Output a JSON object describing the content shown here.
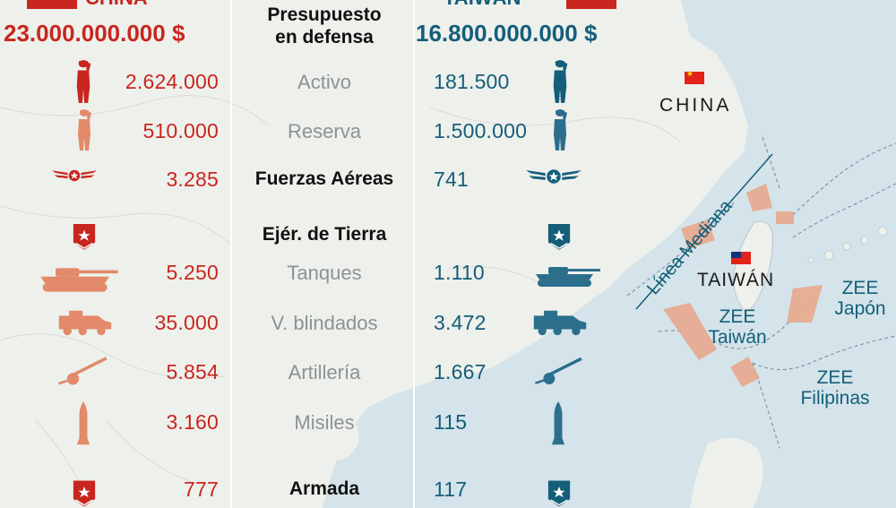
{
  "header": {
    "left_value": "23.000.000.000 $",
    "right_value": "16.800.000.000 $",
    "category": [
      "Presupuesto",
      "en defensa"
    ],
    "left_country_partial": "CHINA",
    "right_country_partial": "TAIWÁN"
  },
  "rows": [
    {
      "category": "Activo",
      "china": "2.624.000",
      "taiwan": "181.500",
      "bold": false,
      "china_icon": "soldier-saluting-icon",
      "taiwan_icon": "soldier-saluting-icon"
    },
    {
      "category": "Reserva",
      "china": "510.000",
      "taiwan": "1.500.000",
      "bold": false,
      "china_icon": "reserve-soldier-icon",
      "taiwan_icon": "reserve-soldier-icon"
    },
    {
      "category": "Fuerzas Aéreas",
      "china": "3.285",
      "taiwan": "741",
      "bold": true,
      "china_icon": "air-force-wings-icon",
      "taiwan_icon": "air-force-wings-icon"
    },
    {
      "category": "Ejér. de Tierra",
      "china": "",
      "taiwan": "",
      "bold": true,
      "china_icon": "army-badge-icon",
      "taiwan_icon": "army-badge-icon"
    },
    {
      "category": "Tanques",
      "china": "5.250",
      "taiwan": "1.110",
      "bold": false,
      "china_icon": "tank-icon",
      "taiwan_icon": "tank-icon"
    },
    {
      "category": "V. blindados",
      "china": "35.000",
      "taiwan": "3.472",
      "bold": false,
      "china_icon": "armored-vehicle-icon",
      "taiwan_icon": "armored-vehicle-icon"
    },
    {
      "category": "Artillería",
      "china": "5.854",
      "taiwan": "1.667",
      "bold": false,
      "china_icon": "artillery-gun-icon",
      "taiwan_icon": "artillery-gun-icon"
    },
    {
      "category": "Misiles",
      "china": "3.160",
      "taiwan": "115",
      "bold": false,
      "china_icon": "missile-icon",
      "taiwan_icon": "missile-icon"
    },
    {
      "category": "Armada",
      "china": "777",
      "taiwan": "117",
      "bold": true,
      "china_icon": "navy-badge-icon",
      "taiwan_icon": "navy-badge-icon"
    }
  ],
  "map": {
    "china_label": "CHINA",
    "taiwan_label": "TAIWÁN",
    "median_line_label": "Línea Mediana",
    "zee_taiwan": [
      "ZEE",
      "Taiwán"
    ],
    "zee_japan": [
      "ZEE",
      "Japón"
    ],
    "zee_philippines": [
      "ZEE",
      "Filipinas"
    ]
  },
  "colors": {
    "china_red": "#c8261e",
    "china_icon_orange": "#e28a6a",
    "taiwan_blue": "#145e7a",
    "taiwan_icon_blue": "#2c6f8d",
    "sea": "#d4e4ea",
    "land": "#eef0ec",
    "zee_zone": "#e9a98d"
  }
}
